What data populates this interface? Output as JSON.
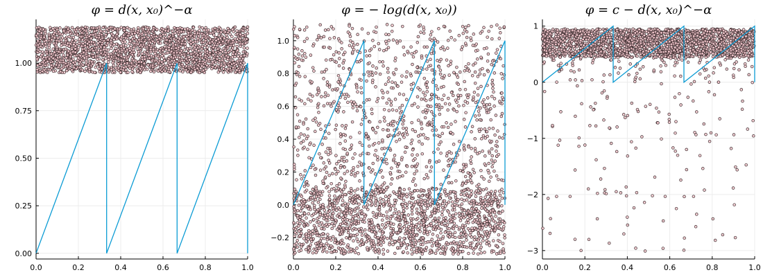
{
  "chart_data": [
    {
      "type": "scatter",
      "title": "φ = d(x, x₀)^−α",
      "xlim": [
        0,
        1
      ],
      "ylim": [
        -0.03,
        1.23
      ],
      "xticks": [
        "0.0",
        "0.2",
        "0.4",
        "0.6",
        "0.8",
        "1.0"
      ],
      "yticks": [
        "0.00",
        "0.25",
        "0.50",
        "0.75",
        "1.00"
      ],
      "grid": true,
      "legend": "none",
      "colors": {
        "points_fill": "#f2c7cc",
        "points_edge": "#3a2a2c",
        "line": "#0a9bd4"
      },
      "scatter_band": {
        "ymin": 0.95,
        "ymax": 1.19,
        "count": 2200
      },
      "line": {
        "x": [
          0,
          0.3333,
          0.3333,
          0.6667,
          0.6667,
          1.0,
          1.0
        ],
        "y": [
          0,
          1.0,
          0,
          1.0,
          0,
          1.0,
          0
        ]
      }
    },
    {
      "type": "scatter",
      "title": "φ = − log(d(x, x₀))",
      "xlim": [
        0,
        1
      ],
      "ylim": [
        -0.33,
        1.13
      ],
      "xticks": [
        "0.0",
        "0.2",
        "0.4",
        "0.6",
        "0.8",
        "1.0"
      ],
      "yticks": [
        "−0.2",
        "0.0",
        "0.2",
        "0.4",
        "0.6",
        "0.8",
        "1.0"
      ],
      "grid": true,
      "legend": "none",
      "colors": {
        "points_fill": "#f2c7cc",
        "points_edge": "#3a2a2c",
        "line": "#0a9bd4"
      },
      "scatter_band": {
        "ymin": -0.3,
        "ymax": 1.1,
        "count": 2600,
        "dense_below": 0.1
      },
      "line": {
        "x": [
          0,
          0.3333,
          0.3333,
          0.6667,
          0.6667,
          1.0,
          1.0
        ],
        "y": [
          0,
          1.0,
          0,
          1.0,
          0,
          1.0,
          0
        ]
      }
    },
    {
      "type": "scatter",
      "title": "φ = c − d(x, x₀)^−α",
      "xlim": [
        0,
        1
      ],
      "ylim": [
        -3.15,
        1.12
      ],
      "xticks": [
        "0.0",
        "0.2",
        "0.4",
        "0.6",
        "0.8",
        "1.0"
      ],
      "yticks": [
        "−3",
        "−2",
        "−1",
        "0",
        "1"
      ],
      "grid": true,
      "legend": "none",
      "colors": {
        "points_fill": "#f2c7cc",
        "points_edge": "#3a2a2c",
        "line": "#0a9bd4"
      },
      "scatter_band": {
        "ymin": 0.45,
        "ymax": 0.95,
        "count": 2000,
        "tail_count": 260,
        "tail_min": -3.05
      },
      "line": {
        "x": [
          0,
          0.3333,
          0.3333,
          0.6667,
          0.6667,
          1.0,
          1.0
        ],
        "y": [
          0,
          1.0,
          0,
          1.0,
          0,
          1.0,
          0
        ]
      }
    }
  ]
}
